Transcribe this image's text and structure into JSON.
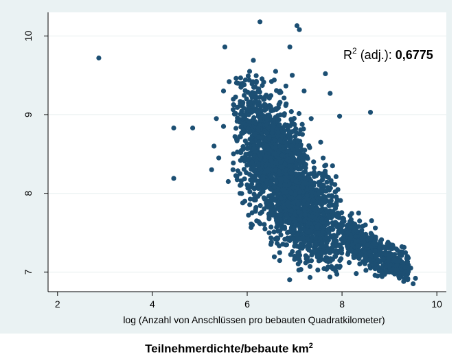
{
  "chart_data": {
    "type": "scatter",
    "xlabel": "log (Anzahl von Anschlüssen pro bebauten Quadratkilometer)",
    "ylabel": "",
    "xlim": [
      1.8,
      10.2
    ],
    "ylim": [
      6.75,
      10.3
    ],
    "x_ticks": [
      "2",
      "4",
      "6",
      "8",
      "10"
    ],
    "y_ticks": [
      "7",
      "8",
      "9",
      "10"
    ],
    "grid": true,
    "annotation": {
      "prefix": "R",
      "sup": "2",
      "middle": " (adj.): ",
      "value": "0,6775"
    },
    "caption": {
      "main": "Teilnehmerdichte/bebaute km",
      "sup": "2"
    },
    "colors": {
      "points": "#1c4f73",
      "plot_bg": "#ffffff",
      "frame_bg": "#eaf2f3",
      "grid": "#e6eeee"
    },
    "series": [
      {
        "points": [
          [
            2.87,
            9.72
          ],
          [
            4.45,
            8.83
          ],
          [
            4.85,
            8.83
          ],
          [
            4.45,
            8.19
          ],
          [
            6.27,
            10.18
          ],
          [
            7.05,
            10.13
          ],
          [
            7.1,
            10.08
          ],
          [
            6.9,
            9.86
          ],
          [
            5.53,
            9.86
          ],
          [
            6.13,
            9.69
          ],
          [
            8.6,
            9.03
          ],
          [
            7.95,
            8.98
          ],
          [
            7.75,
            9.27
          ],
          [
            7.65,
            9.52
          ],
          [
            7.2,
            9.3
          ],
          [
            5.8,
            9.4
          ],
          [
            5.3,
            8.6
          ],
          [
            5.25,
            8.3
          ],
          [
            5.4,
            8.45
          ],
          [
            5.6,
            8.15
          ],
          [
            5.7,
            8.3
          ],
          [
            5.85,
            8.0
          ],
          [
            5.95,
            7.9
          ],
          [
            6.2,
            7.65
          ],
          [
            6.5,
            7.35
          ],
          [
            8.35,
            7.75
          ],
          [
            8.0,
            7.6
          ],
          [
            8.6,
            7.05
          ],
          [
            9.3,
            6.88
          ],
          [
            9.5,
            6.85
          ],
          [
            9.55,
            6.92
          ],
          [
            9.45,
            7.05
          ],
          [
            9.3,
            7.1
          ],
          [
            9.0,
            7.0
          ],
          [
            8.9,
            6.97
          ],
          [
            8.8,
            7.13
          ],
          [
            8.75,
            6.95
          ],
          [
            9.2,
            6.95
          ],
          [
            7.3,
            7.28
          ],
          [
            7.55,
            7.25
          ],
          [
            6.9,
            7.4
          ],
          [
            7.0,
            7.2
          ],
          [
            8.15,
            7.12
          ],
          [
            8.3,
            6.98
          ],
          [
            7.8,
            7.85
          ],
          [
            7.6,
            8.05
          ],
          [
            7.4,
            8.4
          ],
          [
            7.7,
            7.7
          ],
          [
            5.62,
            9.42
          ],
          [
            5.5,
            9.3
          ],
          [
            6.05,
            9.55
          ],
          [
            6.6,
            9.55
          ],
          [
            6.95,
            9.5
          ],
          [
            7.35,
            8.95
          ],
          [
            7.55,
            8.65
          ],
          [
            7.8,
            8.35
          ],
          [
            5.5,
            8.85
          ],
          [
            5.35,
            8.95
          ]
        ]
      }
    ]
  }
}
